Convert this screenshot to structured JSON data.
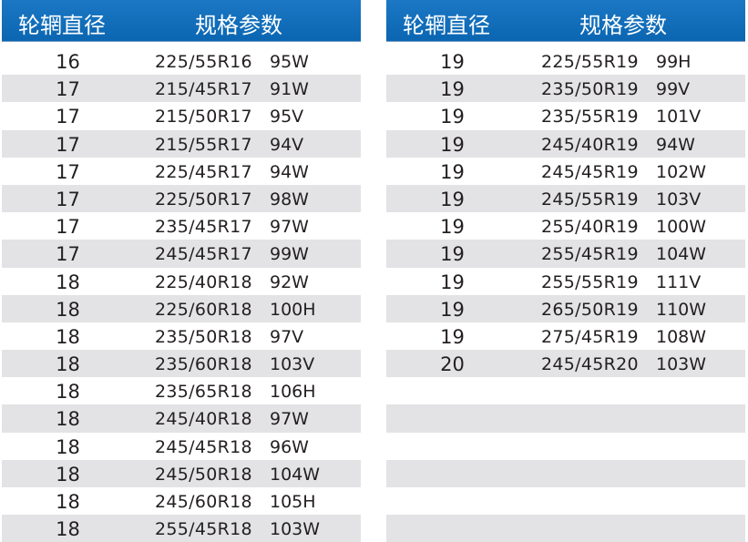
{
  "headers": {
    "diameter": "轮辋直径",
    "spec": "规格参数"
  },
  "colors": {
    "header_bg": "#0b66b2",
    "alt_row": "#e3e3e5",
    "text": "#231f20"
  },
  "left_table": [
    {
      "diameter": "16",
      "size": "225/55R16",
      "load": "95W"
    },
    {
      "diameter": "17",
      "size": "215/45R17",
      "load": "91W"
    },
    {
      "diameter": "17",
      "size": "215/50R17",
      "load": "95V"
    },
    {
      "diameter": "17",
      "size": "215/55R17",
      "load": "94V"
    },
    {
      "diameter": "17",
      "size": "225/45R17",
      "load": "94W"
    },
    {
      "diameter": "17",
      "size": "225/50R17",
      "load": "98W"
    },
    {
      "diameter": "17",
      "size": "235/45R17",
      "load": "97W"
    },
    {
      "diameter": "17",
      "size": "245/45R17",
      "load": "99W"
    },
    {
      "diameter": "18",
      "size": "225/40R18",
      "load": "92W"
    },
    {
      "diameter": "18",
      "size": "225/60R18",
      "load": "100H"
    },
    {
      "diameter": "18",
      "size": "235/50R18",
      "load": "97V"
    },
    {
      "diameter": "18",
      "size": "235/60R18",
      "load": "103V"
    },
    {
      "diameter": "18",
      "size": "235/65R18",
      "load": "106H"
    },
    {
      "diameter": "18",
      "size": "245/40R18",
      "load": "97W"
    },
    {
      "diameter": "18",
      "size": "245/45R18",
      "load": "96W"
    },
    {
      "diameter": "18",
      "size": "245/50R18",
      "load": "104W"
    },
    {
      "diameter": "18",
      "size": "245/60R18",
      "load": "105H"
    },
    {
      "diameter": "18",
      "size": "255/45R18",
      "load": "103W"
    }
  ],
  "right_table": [
    {
      "diameter": "19",
      "size": "225/55R19",
      "load": "99H"
    },
    {
      "diameter": "19",
      "size": "235/50R19",
      "load": "99V"
    },
    {
      "diameter": "19",
      "size": "235/55R19",
      "load": "101V"
    },
    {
      "diameter": "19",
      "size": "245/40R19",
      "load": "94W"
    },
    {
      "diameter": "19",
      "size": "245/45R19",
      "load": "102W"
    },
    {
      "diameter": "19",
      "size": "245/55R19",
      "load": "103V"
    },
    {
      "diameter": "19",
      "size": "255/40R19",
      "load": "100W"
    },
    {
      "diameter": "19",
      "size": "255/45R19",
      "load": "104W"
    },
    {
      "diameter": "19",
      "size": "255/55R19",
      "load": "111V"
    },
    {
      "diameter": "19",
      "size": "265/50R19",
      "load": "110W"
    },
    {
      "diameter": "19",
      "size": "275/45R19",
      "load": "108W"
    },
    {
      "diameter": "20",
      "size": "245/45R20",
      "load": "103W"
    }
  ]
}
